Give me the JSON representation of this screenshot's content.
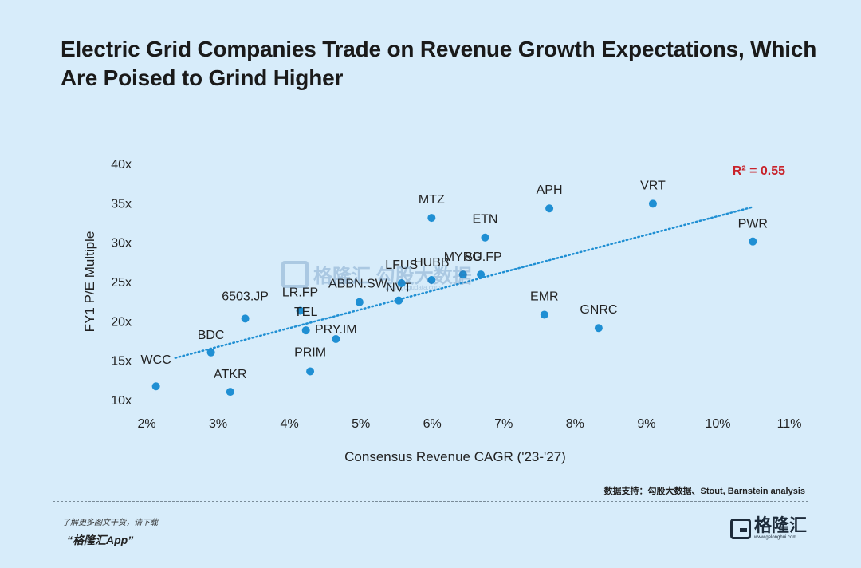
{
  "chart_data": {
    "type": "scatter",
    "title": "Electric Grid Companies Trade on Revenue Growth Expectations, Which Are Poised to Grind Higher",
    "xlabel": "Consensus Revenue CAGR ('23-'27)",
    "ylabel": "FY1 P/E Multiple",
    "xlim": [
      2,
      11
    ],
    "ylim": [
      10,
      40
    ],
    "x_ticks": [
      "2%",
      "3%",
      "4%",
      "5%",
      "6%",
      "7%",
      "8%",
      "9%",
      "10%",
      "11%"
    ],
    "y_ticks": [
      "10x",
      "15x",
      "20x",
      "25x",
      "30x",
      "35x",
      "40x"
    ],
    "x_tick_values": [
      2,
      3,
      4,
      5,
      6,
      7,
      8,
      9,
      10,
      11
    ],
    "y_tick_values": [
      10,
      15,
      20,
      25,
      30,
      35,
      40
    ],
    "grid": false,
    "annotation": "R² = 0.55",
    "trendline": {
      "x": [
        2.4,
        10.5
      ],
      "y": [
        15.3,
        34.5
      ]
    },
    "points": [
      {
        "label": "WCC",
        "x": 2.13,
        "y": 11.7
      },
      {
        "label": "ATKR",
        "x": 3.17,
        "y": 11.0
      },
      {
        "label": "BDC",
        "x": 2.9,
        "y": 16.0
      },
      {
        "label": "6503.JP",
        "x": 3.38,
        "y": 20.3
      },
      {
        "label": "LR.FP",
        "x": 4.15,
        "y": 21.3
      },
      {
        "label": "TEL",
        "x": 4.23,
        "y": 18.8
      },
      {
        "label": "PRY.IM",
        "x": 4.65,
        "y": 17.7
      },
      {
        "label": "PRIM",
        "x": 4.29,
        "y": 13.6
      },
      {
        "label": "ABBN.SW",
        "x": 4.98,
        "y": 22.4
      },
      {
        "label": "NVT",
        "x": 5.53,
        "y": 22.6
      },
      {
        "label": "LFUS",
        "x": 5.57,
        "y": 24.8
      },
      {
        "label": "HUBB",
        "x": 5.99,
        "y": 25.2
      },
      {
        "label": "MTZ",
        "x": 5.99,
        "y": 33.1
      },
      {
        "label": "MYRG",
        "x": 6.43,
        "y": 25.9
      },
      {
        "label": "SU.FP",
        "x": 6.68,
        "y": 25.9
      },
      {
        "label": "ETN",
        "x": 6.74,
        "y": 30.6
      },
      {
        "label": "APH",
        "x": 7.64,
        "y": 34.3
      },
      {
        "label": "EMR",
        "x": 7.57,
        "y": 20.8
      },
      {
        "label": "GNRC",
        "x": 8.33,
        "y": 19.1
      },
      {
        "label": "VRT",
        "x": 9.09,
        "y": 34.9
      },
      {
        "label": "PWR",
        "x": 10.49,
        "y": 30.1
      }
    ]
  },
  "source": "数据支持：勾股大数据、Stout, Barnstein analysis",
  "footer": {
    "line1": "了解更多图文干货，请下载",
    "line2": "“格隆汇App”"
  },
  "brand": {
    "name": "格隆汇",
    "url": "www.gelonghui.com"
  },
  "watermark": {
    "text": "格隆汇 勾股大数据",
    "url": "www.gogudata.com"
  },
  "colors": {
    "background": "#d7ecfa",
    "point": "#1f8fd3",
    "trend": "#1f8fd3",
    "annotation": "#c8232b"
  }
}
